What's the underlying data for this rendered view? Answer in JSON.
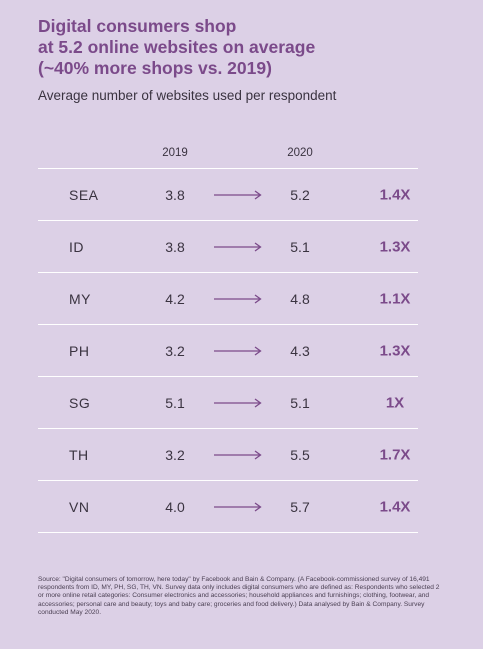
{
  "title_lines": [
    "Digital consumers shop",
    "at 5.2 online websites on average",
    "(~40% more shops vs. 2019)"
  ],
  "subtitle": "Average number of websites used per respondent",
  "columns": {
    "y2019": "2019",
    "y2020": "2020"
  },
  "rows": [
    {
      "region": "SEA",
      "v2019": "3.8",
      "v2020": "5.2",
      "multiplier": "1.4X"
    },
    {
      "region": "ID",
      "v2019": "3.8",
      "v2020": "5.1",
      "multiplier": "1.3X"
    },
    {
      "region": "MY",
      "v2019": "4.2",
      "v2020": "4.8",
      "multiplier": "1.1X"
    },
    {
      "region": "PH",
      "v2019": "3.2",
      "v2020": "4.3",
      "multiplier": "1.3X"
    },
    {
      "region": "SG",
      "v2019": "5.1",
      "v2020": "5.1",
      "multiplier": "1X"
    },
    {
      "region": "TH",
      "v2019": "3.2",
      "v2020": "5.5",
      "multiplier": "1.7X"
    },
    {
      "region": "VN",
      "v2019": "4.0",
      "v2020": "5.7",
      "multiplier": "1.4X"
    }
  ],
  "source": "Source: \"Digital consumers of tomorrow, here today\" by Facebook and Bain & Company. (A Facebook-commissioned survey of 16,491 respondents from ID, MY, PH, SG, TH, VN. Survey data only includes digital consumers who are defined as: Respondents who selected 2 or more online retail categories: Consumer electronics and accessories; household appliances and furnishings; clothing, footwear, and accessories; personal care and beauty; toys and baby care; groceries and food delivery.) Data analysed by Bain & Company. Survey conducted May 2020.",
  "colors": {
    "background": "#dcd0e6",
    "accent": "#7b4a8a",
    "text": "#3a3340",
    "divider": "#ffffff"
  },
  "icons": {
    "row_arrow": "arrow-right-icon"
  }
}
